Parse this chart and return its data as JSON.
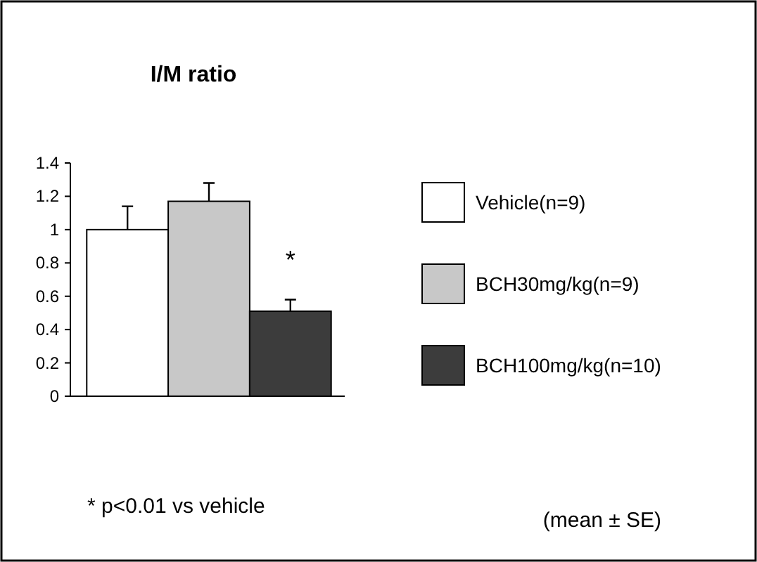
{
  "chart_data": {
    "type": "bar",
    "title": "I/M ratio",
    "categories": [
      null
    ],
    "series": [
      {
        "name": "Vehicle(n=9)",
        "color": "#ffffff",
        "values": [
          1.0
        ],
        "errors": [
          0.14
        ]
      },
      {
        "name": "BCH30mg/kg(n=9)",
        "color": "#c8c8c8",
        "values": [
          1.17
        ],
        "errors": [
          0.11
        ]
      },
      {
        "name": "BCH100mg/kg(n=10)",
        "color": "#3c3c3c",
        "values": [
          0.51
        ],
        "errors": [
          0.07
        ]
      }
    ],
    "ylim": [
      0,
      1.4
    ],
    "yticks": [
      0,
      0.2,
      0.4,
      0.6,
      0.8,
      1,
      1.2,
      1.4
    ],
    "grid": false,
    "legend": "right",
    "annotations": [
      "*",
      "* p<0.01 vs vehicle",
      "(mean ± SE)"
    ]
  }
}
